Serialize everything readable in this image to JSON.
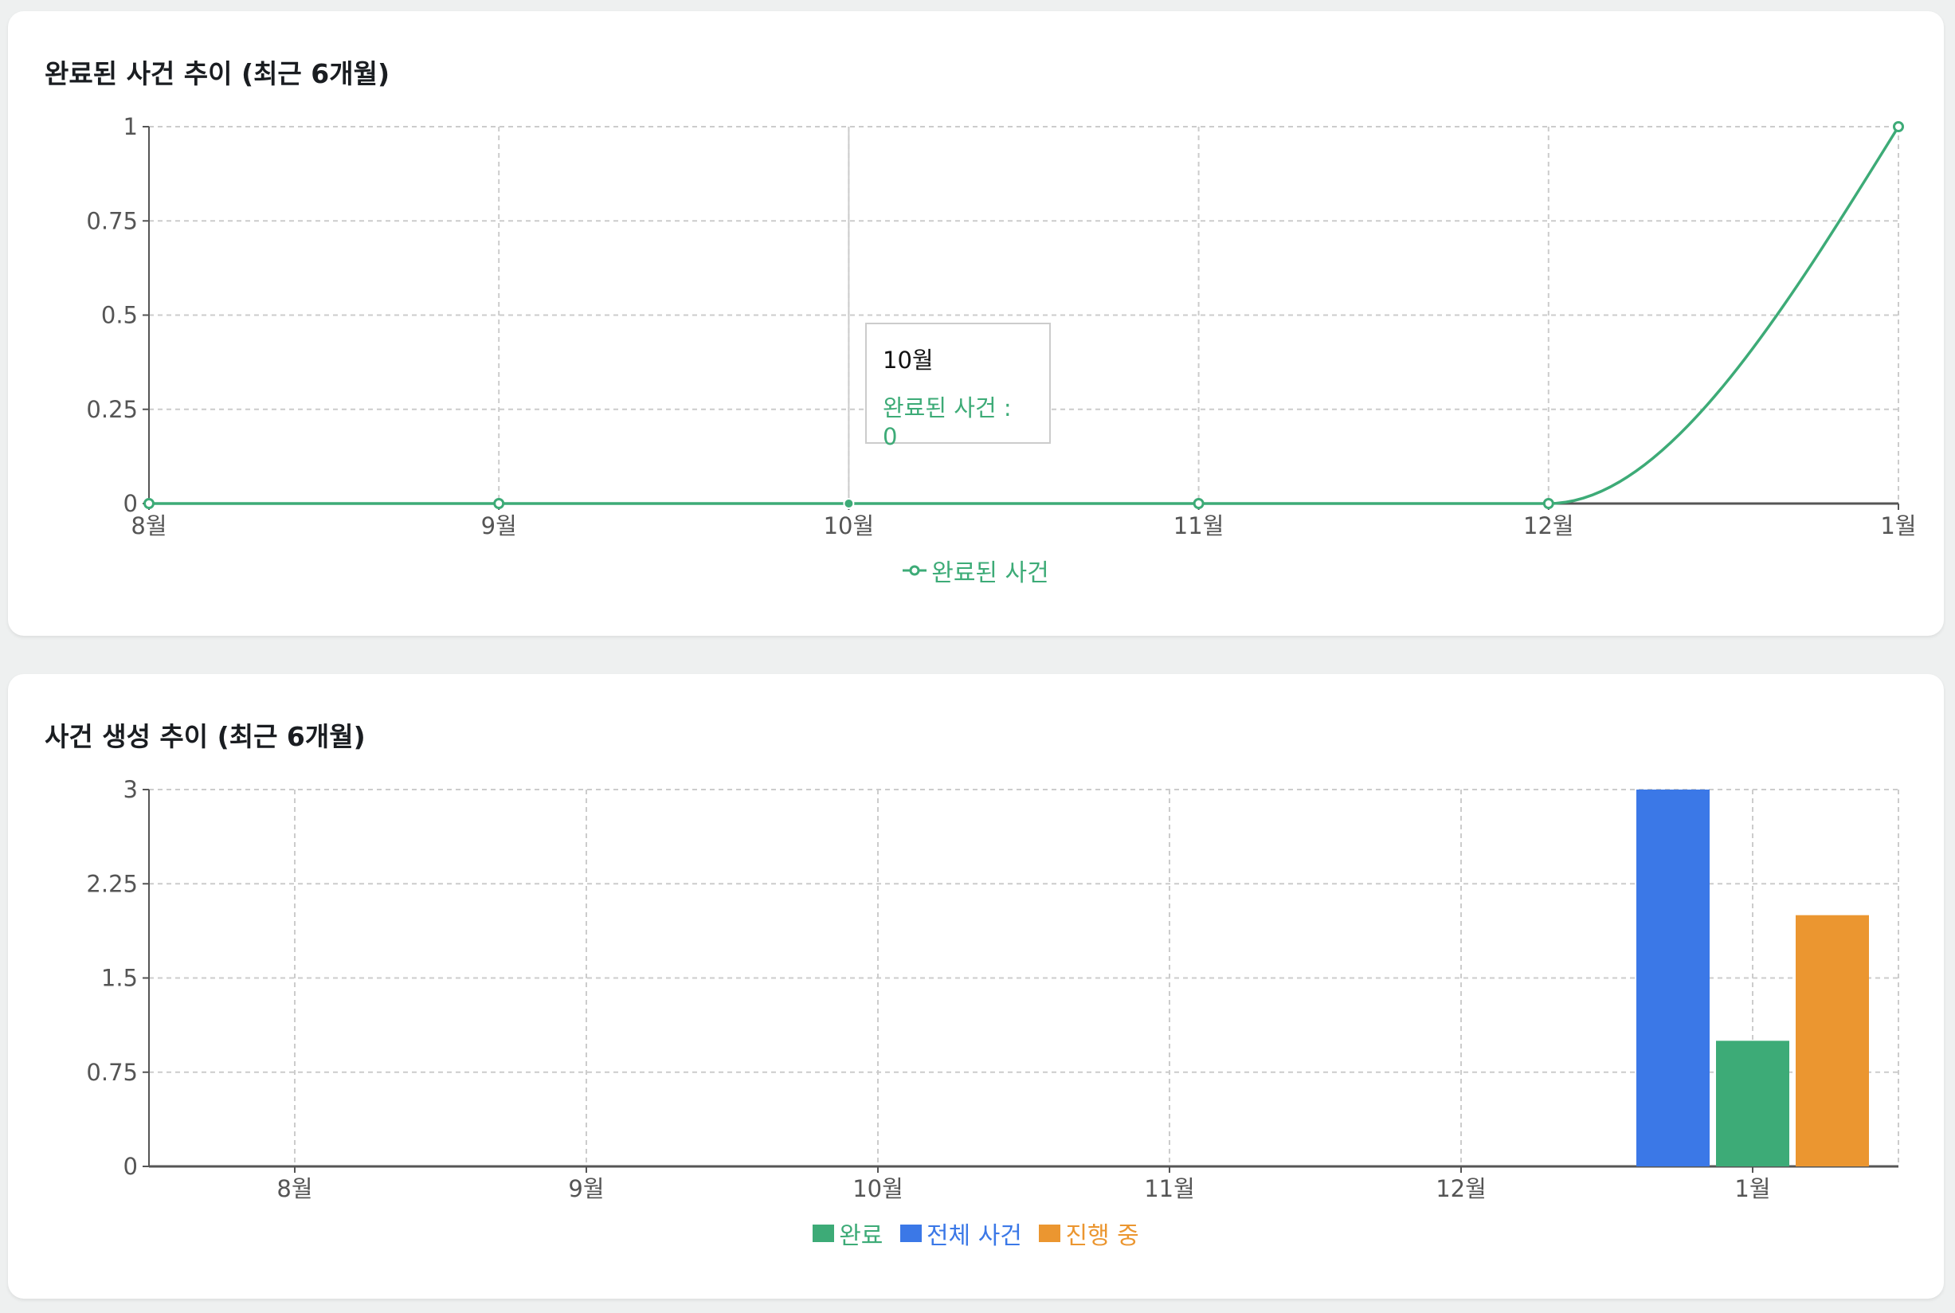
{
  "colors": {
    "completed": "#3dab77",
    "total": "#3b78e7",
    "in_progress": "#eb9630",
    "grid": "#cccccc",
    "axis": "#555555"
  },
  "chart_data": [
    {
      "type": "line",
      "title": "완료된 사건 추이 (최근 6개월)",
      "categories": [
        "8월",
        "9월",
        "10월",
        "11월",
        "12월",
        "1월"
      ],
      "series": [
        {
          "name": "완료된 사건",
          "values": [
            0,
            0,
            0,
            0,
            0,
            1
          ],
          "color": "#3dab77"
        }
      ],
      "ylim": [
        0,
        1
      ],
      "yticks": [
        "0",
        "0.25",
        "0.5",
        "0.75",
        "1"
      ],
      "grid": true,
      "legend": "bottom",
      "curve": "monotone",
      "tooltip": {
        "label": "10월",
        "text": "완료된 사건 : 0",
        "active_index": 2
      }
    },
    {
      "type": "bar",
      "title": "사건 생성 추이 (최근 6개월)",
      "categories": [
        "8월",
        "9월",
        "10월",
        "11월",
        "12월",
        "1월"
      ],
      "series": [
        {
          "name": "전체 사건",
          "values": [
            0,
            0,
            0,
            0,
            0,
            3
          ],
          "color": "#3b78e7"
        },
        {
          "name": "완료",
          "values": [
            0,
            0,
            0,
            0,
            0,
            1
          ],
          "color": "#3dab77"
        },
        {
          "name": "진행 중",
          "values": [
            0,
            0,
            0,
            0,
            0,
            2
          ],
          "color": "#eb9630"
        }
      ],
      "legend_order": [
        "완료",
        "전체 사건",
        "진행 중"
      ],
      "ylim": [
        0,
        3
      ],
      "yticks": [
        "0",
        "0.75",
        "1.5",
        "2.25",
        "3"
      ],
      "grid": true,
      "legend": "bottom"
    }
  ]
}
